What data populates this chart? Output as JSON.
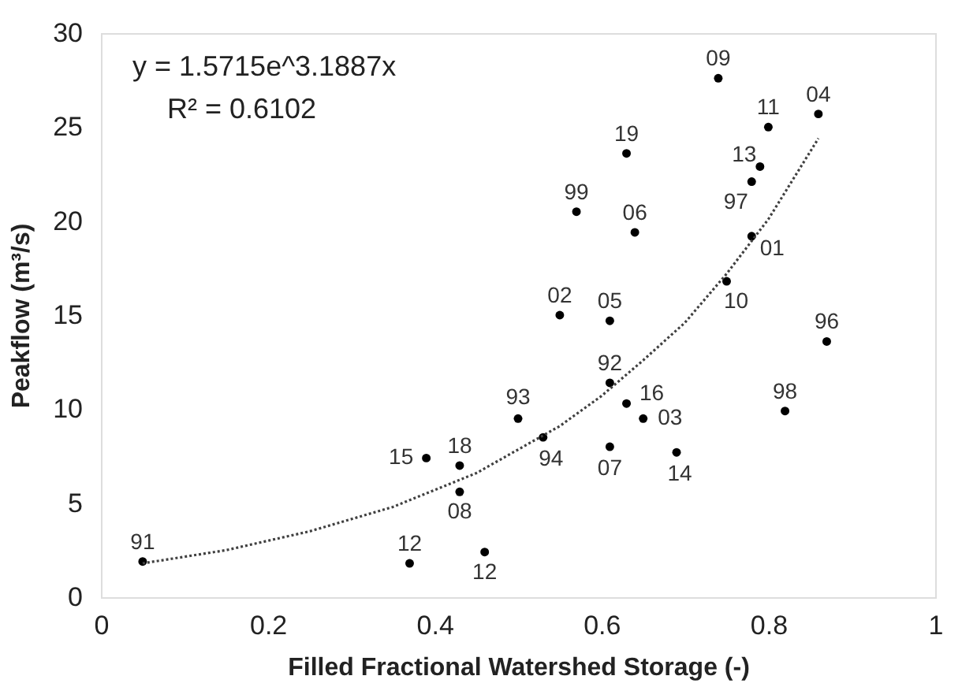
{
  "chart_data": {
    "type": "scatter",
    "xlabel": "Filled Fractional Watershed Storage (-)",
    "ylabel": "Peakflow  (m³/s)",
    "xlim": [
      0,
      1
    ],
    "xticks": [
      0,
      0.2,
      0.4,
      0.6,
      0.8,
      1
    ],
    "ylim": [
      0,
      30
    ],
    "yticks": [
      0,
      5,
      10,
      15,
      20,
      25,
      30
    ],
    "grid": false,
    "marker": "circle",
    "series": [
      {
        "color": "#000000",
        "x": [
          0.05,
          0.37,
          0.39,
          0.43,
          0.43,
          0.46,
          0.74,
          0.86,
          0.8,
          0.63,
          0.79,
          0.78,
          0.57,
          0.64,
          0.78,
          0.75,
          0.55,
          0.61,
          0.87,
          0.61,
          0.63,
          0.82,
          0.5,
          0.65,
          0.53,
          0.61,
          0.69
        ],
        "values": [
          1.9,
          1.8,
          7.4,
          7.0,
          5.6,
          2.4,
          27.6,
          25.7,
          25.0,
          23.6,
          22.9,
          22.1,
          20.5,
          19.4,
          19.2,
          16.8,
          15.0,
          14.7,
          13.6,
          11.4,
          10.3,
          9.9,
          9.5,
          9.5,
          8.5,
          8.0,
          7.7
        ]
      },
      {
        "type": "line",
        "color": "#404040",
        "line_style": "dotted",
        "marker": "none",
        "x": [
          0.05,
          0.15,
          0.25,
          0.35,
          0.45,
          0.55,
          0.6,
          0.65,
          0.7,
          0.75,
          0.8,
          0.86
        ],
        "values": [
          1.8,
          2.5,
          3.5,
          4.8,
          6.6,
          9.1,
          10.7,
          12.6,
          14.6,
          17.2,
          20.1,
          24.4
        ]
      }
    ],
    "annotations": [
      "y = 1.5715e^3.1887x",
      "R² = 0.6102",
      {
        "text": "91",
        "x": 0.05,
        "y": 1.9
      },
      {
        "text": "12",
        "x": 0.37,
        "y": 1.8
      },
      {
        "text": "15",
        "x": 0.39,
        "y": 7.4
      },
      {
        "text": "18",
        "x": 0.43,
        "y": 7.0
      },
      {
        "text": "08",
        "x": 0.43,
        "y": 5.6
      },
      {
        "text": "12",
        "x": 0.46,
        "y": 2.4
      },
      {
        "text": "09",
        "x": 0.74,
        "y": 27.6
      },
      {
        "text": "04",
        "x": 0.86,
        "y": 25.7
      },
      {
        "text": "11",
        "x": 0.8,
        "y": 25.0
      },
      {
        "text": "19",
        "x": 0.63,
        "y": 23.6
      },
      {
        "text": "13",
        "x": 0.79,
        "y": 22.9
      },
      {
        "text": "97",
        "x": 0.78,
        "y": 22.1
      },
      {
        "text": "99",
        "x": 0.57,
        "y": 20.5
      },
      {
        "text": "06",
        "x": 0.64,
        "y": 19.4
      },
      {
        "text": "01",
        "x": 0.78,
        "y": 19.2
      },
      {
        "text": "10",
        "x": 0.75,
        "y": 16.8
      },
      {
        "text": "02",
        "x": 0.55,
        "y": 15.0
      },
      {
        "text": "05",
        "x": 0.61,
        "y": 14.7
      },
      {
        "text": "96",
        "x": 0.87,
        "y": 13.6
      },
      {
        "text": "92",
        "x": 0.61,
        "y": 11.4
      },
      {
        "text": "16",
        "x": 0.63,
        "y": 10.3
      },
      {
        "text": "98",
        "x": 0.82,
        "y": 9.9
      },
      {
        "text": "93",
        "x": 0.5,
        "y": 9.5
      },
      {
        "text": "03",
        "x": 0.65,
        "y": 9.5
      },
      {
        "text": "94",
        "x": 0.53,
        "y": 8.5
      },
      {
        "text": "07",
        "x": 0.61,
        "y": 8.0
      },
      {
        "text": "14",
        "x": 0.69,
        "y": 7.7
      }
    ]
  }
}
